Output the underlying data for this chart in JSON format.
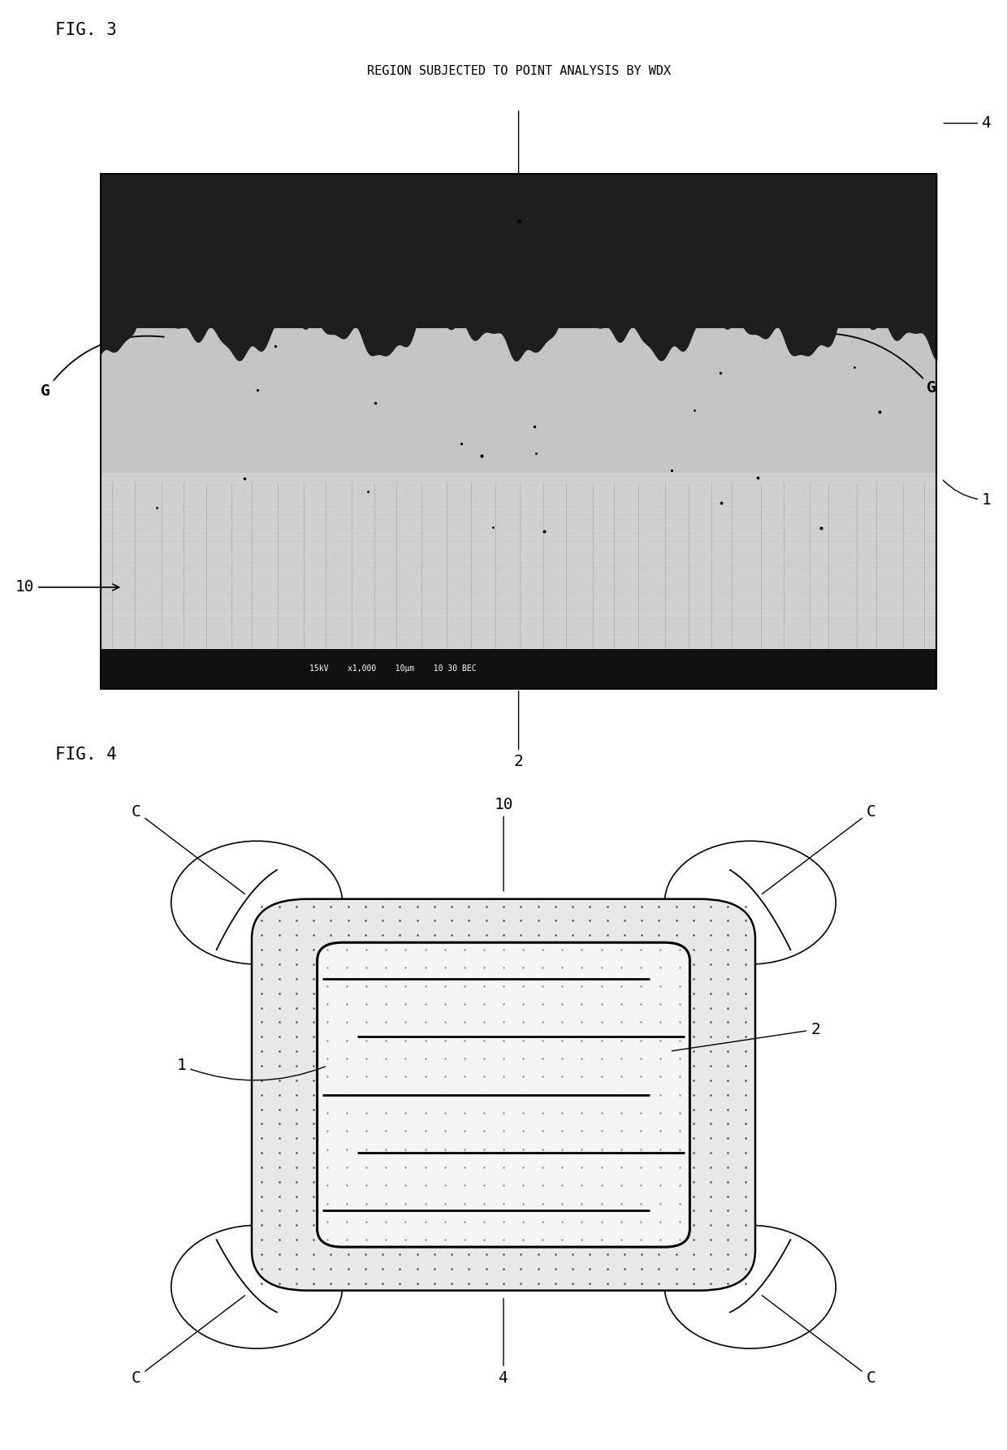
{
  "fig3_label": "FIG. 3",
  "fig4_label": "FIG. 4",
  "annotation_text": "REGION SUBJECTED TO POINT ANALYSIS BY WDX",
  "bg_color": "#ffffff",
  "fig3": {
    "scale_bar_text": "15kV    x1,000    10μm    10 30 BEC"
  },
  "fig4": {
    "n_electrodes": 5
  }
}
